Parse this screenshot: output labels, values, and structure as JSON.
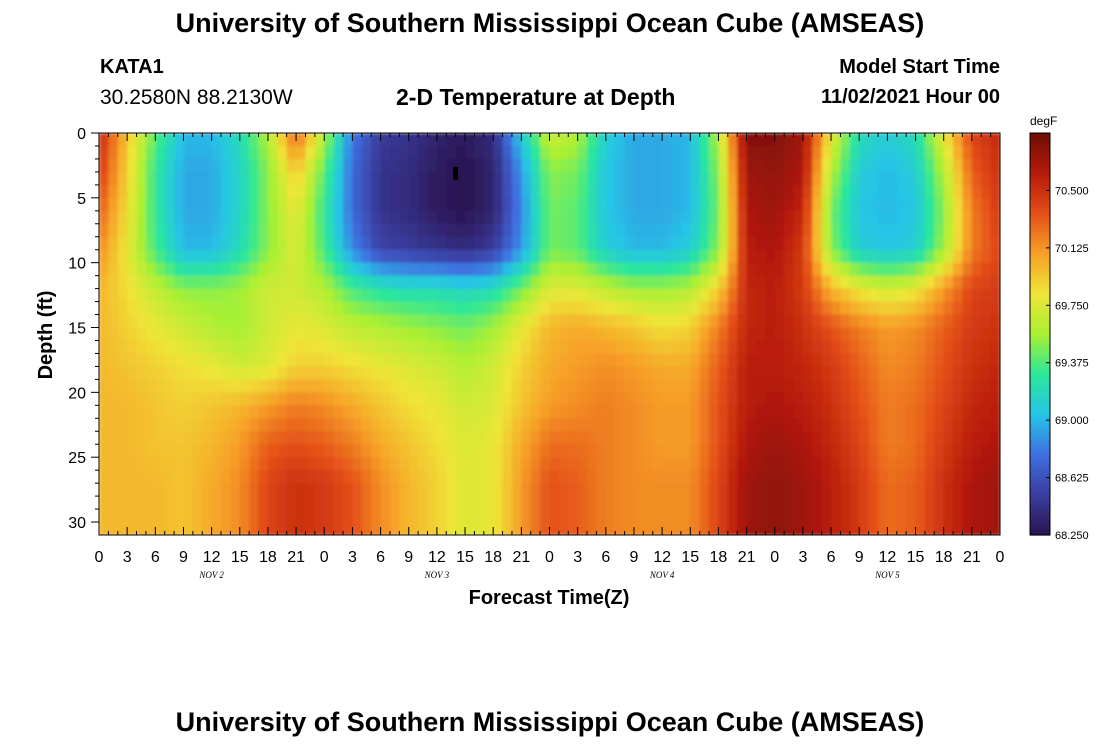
{
  "header": {
    "title": "University of Southern Mississippi Ocean Cube (AMSEAS)",
    "station": "KATA1",
    "coords": "30.2580N  88.2130W",
    "plot_name": "2-D Temperature at Depth",
    "model_start_label": "Model Start Time",
    "model_start_value": "11/02/2021 Hour 00"
  },
  "footer": {
    "title": "University of Southern Mississippi Ocean Cube (AMSEAS)"
  },
  "chart_data": {
    "type": "heatmap",
    "title": "2-D Temperature at Depth",
    "xlabel": "Forecast Time(Z)",
    "ylabel": "Depth (ft)",
    "x_tick_labels": [
      "0",
      "3",
      "6",
      "9",
      "12",
      "15",
      "18",
      "21",
      "0",
      "3",
      "6",
      "9",
      "12",
      "15",
      "18",
      "21",
      "0",
      "3",
      "6",
      "9",
      "12",
      "15",
      "18",
      "21",
      "0",
      "3",
      "6",
      "9",
      "12",
      "15",
      "18",
      "21",
      "0"
    ],
    "day_labels": [
      "NOV 2",
      "NOV 3",
      "NOV 4",
      "NOV 5"
    ],
    "xlim_hours": [
      0,
      96
    ],
    "y_ticks": [
      0,
      5,
      10,
      15,
      20,
      25,
      30
    ],
    "ylim": [
      0,
      31
    ],
    "y_inverted": true,
    "colorbar": {
      "unit": "degF",
      "min": 68.25,
      "max": 70.875,
      "tick_labels": [
        "70.500",
        "70.125",
        "69.750",
        "69.375",
        "69.000",
        "68.625",
        "68.250"
      ],
      "tick_values": [
        70.5,
        70.125,
        69.75,
        69.375,
        69.0,
        68.625,
        68.25
      ],
      "colors": [
        "#2a1450",
        "#3a3d9f",
        "#3f6fe0",
        "#26c5e6",
        "#2be79a",
        "#a9f033",
        "#efe537",
        "#f7a028",
        "#e44f18",
        "#b61a0a",
        "#6e0d05"
      ]
    },
    "depths_ft": [
      0,
      3,
      6,
      9,
      12,
      15,
      18,
      21,
      24,
      27,
      31
    ],
    "times_h": [
      0,
      3,
      6,
      9,
      12,
      15,
      18,
      21,
      24,
      27,
      30,
      33,
      36,
      39,
      42,
      45,
      48,
      51,
      54,
      57,
      60,
      63,
      66,
      69,
      72,
      75,
      78,
      81,
      84,
      87,
      90,
      93,
      96
    ],
    "values": [
      [
        70.55,
        69.95,
        69.4,
        69.0,
        69.0,
        69.2,
        69.6,
        70.3,
        69.6,
        68.8,
        68.5,
        68.45,
        68.35,
        68.3,
        68.4,
        69.1,
        69.7,
        69.6,
        69.1,
        68.95,
        68.95,
        69.0,
        69.6,
        70.8,
        70.8,
        70.7,
        69.8,
        69.2,
        69.1,
        69.2,
        69.8,
        70.4,
        70.55
      ],
      [
        70.45,
        69.9,
        69.3,
        68.95,
        68.95,
        69.15,
        69.5,
        69.95,
        69.4,
        68.75,
        68.45,
        68.4,
        68.3,
        68.25,
        68.35,
        68.9,
        69.5,
        69.45,
        69.05,
        68.95,
        68.95,
        69.0,
        69.5,
        70.7,
        70.75,
        70.65,
        69.6,
        69.1,
        69.0,
        69.1,
        69.6,
        70.3,
        70.5
      ],
      [
        70.3,
        69.85,
        69.3,
        68.95,
        68.95,
        69.15,
        69.5,
        69.8,
        69.3,
        68.75,
        68.45,
        68.4,
        68.3,
        68.25,
        68.35,
        68.85,
        69.45,
        69.4,
        69.05,
        68.95,
        68.95,
        69.0,
        69.45,
        70.65,
        70.7,
        70.55,
        69.45,
        69.05,
        69.0,
        69.05,
        69.5,
        70.2,
        70.45
      ],
      [
        70.15,
        69.8,
        69.35,
        69.0,
        69.0,
        69.2,
        69.5,
        69.75,
        69.35,
        68.85,
        68.55,
        68.5,
        68.45,
        68.4,
        68.5,
        68.9,
        69.45,
        69.4,
        69.1,
        69.0,
        69.0,
        69.1,
        69.5,
        70.6,
        70.65,
        70.45,
        69.5,
        69.1,
        69.05,
        69.1,
        69.55,
        70.2,
        70.4
      ],
      [
        70.0,
        69.85,
        69.65,
        69.5,
        69.5,
        69.55,
        69.7,
        69.7,
        69.6,
        69.35,
        69.25,
        69.2,
        69.2,
        69.15,
        69.2,
        69.45,
        69.75,
        69.75,
        69.65,
        69.55,
        69.55,
        69.6,
        69.9,
        70.55,
        70.6,
        70.45,
        70.0,
        69.8,
        69.7,
        69.8,
        70.1,
        70.4,
        70.45
      ],
      [
        70.0,
        69.9,
        69.8,
        69.7,
        69.6,
        69.55,
        69.7,
        69.8,
        69.75,
        69.65,
        69.6,
        69.55,
        69.5,
        69.45,
        69.55,
        69.8,
        70.0,
        70.05,
        70.0,
        69.95,
        69.85,
        69.9,
        70.2,
        70.55,
        70.6,
        70.5,
        70.35,
        70.2,
        70.1,
        70.15,
        70.3,
        70.45,
        70.5
      ],
      [
        70.0,
        69.95,
        69.9,
        69.85,
        69.8,
        69.7,
        69.75,
        69.9,
        69.9,
        69.85,
        69.8,
        69.75,
        69.7,
        69.6,
        69.7,
        69.9,
        70.05,
        70.1,
        70.15,
        70.1,
        70.05,
        70.05,
        70.3,
        70.6,
        70.6,
        70.55,
        70.45,
        70.3,
        70.15,
        70.2,
        70.35,
        70.5,
        70.55
      ],
      [
        70.0,
        70.0,
        69.95,
        69.9,
        69.95,
        70.0,
        70.1,
        70.2,
        70.15,
        70.05,
        69.95,
        69.85,
        69.8,
        69.7,
        69.75,
        69.95,
        70.1,
        70.15,
        70.2,
        70.15,
        70.1,
        70.1,
        70.35,
        70.6,
        70.65,
        70.6,
        70.5,
        70.35,
        70.2,
        70.25,
        70.4,
        70.55,
        70.6
      ],
      [
        70.0,
        70.0,
        69.95,
        69.95,
        70.0,
        70.1,
        70.3,
        70.35,
        70.3,
        70.2,
        70.05,
        69.95,
        69.85,
        69.75,
        69.8,
        70.05,
        70.25,
        70.25,
        70.2,
        70.15,
        70.1,
        70.1,
        70.35,
        70.65,
        70.7,
        70.65,
        70.55,
        70.4,
        70.2,
        70.25,
        70.45,
        70.6,
        70.65
      ],
      [
        70.0,
        70.0,
        70.0,
        69.95,
        70.05,
        70.15,
        70.4,
        70.5,
        70.45,
        70.35,
        70.15,
        70.0,
        69.9,
        69.75,
        69.8,
        70.1,
        70.35,
        70.3,
        70.2,
        70.15,
        70.15,
        70.15,
        70.4,
        70.7,
        70.75,
        70.7,
        70.6,
        70.45,
        70.25,
        70.3,
        70.5,
        70.65,
        70.7
      ],
      [
        70.0,
        70.0,
        70.0,
        69.95,
        70.05,
        70.15,
        70.4,
        70.5,
        70.45,
        70.35,
        70.15,
        70.0,
        69.9,
        69.75,
        69.8,
        70.1,
        70.35,
        70.3,
        70.2,
        70.15,
        70.15,
        70.15,
        70.4,
        70.7,
        70.75,
        70.7,
        70.6,
        70.45,
        70.25,
        70.3,
        70.5,
        70.65,
        70.7
      ]
    ],
    "marker": {
      "time_h": 38.0,
      "depth_ft": 3.0
    }
  }
}
